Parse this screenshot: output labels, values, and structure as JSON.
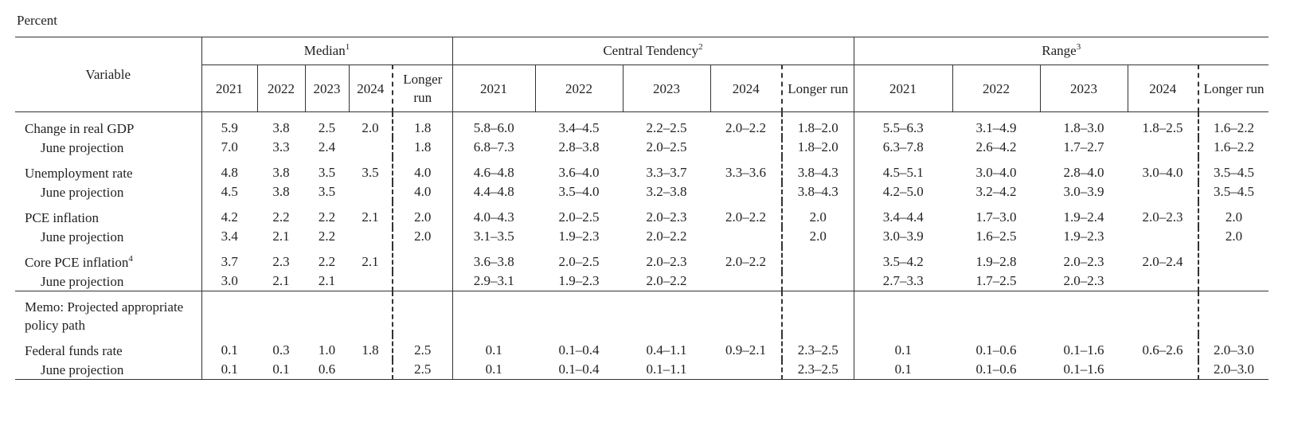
{
  "unit": "Percent",
  "header": {
    "variable": "Variable",
    "groups": [
      {
        "label": "Median",
        "note": "1",
        "years": [
          "2021",
          "2022",
          "2023",
          "2024",
          "Longer run"
        ]
      },
      {
        "label": "Central Tendency",
        "note": "2",
        "years": [
          "2021",
          "2022",
          "2023",
          "2024",
          "Longer run"
        ]
      },
      {
        "label": "Range",
        "note": "3",
        "years": [
          "2021",
          "2022",
          "2023",
          "2024",
          "Longer run"
        ]
      }
    ]
  },
  "sections": [
    [
      {
        "label": "Change in real GDP",
        "cells": [
          "5.9",
          "3.8",
          "2.5",
          "2.0",
          "1.8",
          "5.8–6.0",
          "3.4–4.5",
          "2.2–2.5",
          "2.0–2.2",
          "1.8–2.0",
          "5.5–6.3",
          "3.1–4.9",
          "1.8–3.0",
          "1.8–2.5",
          "1.6–2.2"
        ]
      },
      {
        "label": "June projection",
        "cells": [
          "7.0",
          "3.3",
          "2.4",
          null,
          "1.8",
          "6.8–7.3",
          "2.8–3.8",
          "2.0–2.5",
          null,
          "1.8–2.0",
          "6.3–7.8",
          "2.6–4.2",
          "1.7–2.7",
          null,
          "1.6–2.2"
        ]
      }
    ],
    [
      {
        "label": "Unemployment rate",
        "cells": [
          "4.8",
          "3.8",
          "3.5",
          "3.5",
          "4.0",
          "4.6–4.8",
          "3.6–4.0",
          "3.3–3.7",
          "3.3–3.6",
          "3.8–4.3",
          "4.5–5.1",
          "3.0–4.0",
          "2.8–4.0",
          "3.0–4.0",
          "3.5–4.5"
        ]
      },
      {
        "label": "June projection",
        "cells": [
          "4.5",
          "3.8",
          "3.5",
          null,
          "4.0",
          "4.4–4.8",
          "3.5–4.0",
          "3.2–3.8",
          null,
          "3.8–4.3",
          "4.2–5.0",
          "3.2–4.2",
          "3.0–3.9",
          null,
          "3.5–4.5"
        ]
      }
    ],
    [
      {
        "label": "PCE inflation",
        "cells": [
          "4.2",
          "2.2",
          "2.2",
          "2.1",
          "2.0",
          "4.0–4.3",
          "2.0–2.5",
          "2.0–2.3",
          "2.0–2.2",
          "2.0",
          "3.4–4.4",
          "1.7–3.0",
          "1.9–2.4",
          "2.0–2.3",
          "2.0"
        ]
      },
      {
        "label": "June projection",
        "cells": [
          "3.4",
          "2.1",
          "2.2",
          null,
          "2.0",
          "3.1–3.5",
          "1.9–2.3",
          "2.0–2.2",
          null,
          "2.0",
          "3.0–3.9",
          "1.6–2.5",
          "1.9–2.3",
          null,
          "2.0"
        ]
      }
    ],
    [
      {
        "label": "Core PCE inflation",
        "note": "4",
        "cells": [
          "3.7",
          "2.3",
          "2.2",
          "2.1",
          null,
          "3.6–3.8",
          "2.0–2.5",
          "2.0–2.3",
          "2.0–2.2",
          null,
          "3.5–4.2",
          "1.9–2.8",
          "2.0–2.3",
          "2.0–2.4",
          null
        ]
      },
      {
        "label": "June projection",
        "cells": [
          "3.0",
          "2.1",
          "2.1",
          null,
          null,
          "2.9–3.1",
          "1.9–2.3",
          "2.0–2.2",
          null,
          null,
          "2.7–3.3",
          "1.7–2.5",
          "2.0–2.3",
          null,
          null
        ]
      }
    ]
  ],
  "memo": {
    "label": "Memo: Projected appropriate policy path",
    "sections": [
      [
        {
          "label": "Federal funds rate",
          "cells": [
            "0.1",
            "0.3",
            "1.0",
            "1.8",
            "2.5",
            "0.1",
            "0.1–0.4",
            "0.4–1.1",
            "0.9–2.1",
            "2.3–2.5",
            "0.1",
            "0.1–0.6",
            "0.1–1.6",
            "0.6–2.6",
            "2.0–3.0"
          ]
        },
        {
          "label": "June projection",
          "cells": [
            "0.1",
            "0.1",
            "0.6",
            null,
            "2.5",
            "0.1",
            "0.1–0.4",
            "0.1–1.1",
            null,
            "2.3–2.5",
            "0.1",
            "0.1–0.6",
            "0.1–1.6",
            null,
            "2.0–3.0"
          ]
        }
      ]
    ]
  }
}
